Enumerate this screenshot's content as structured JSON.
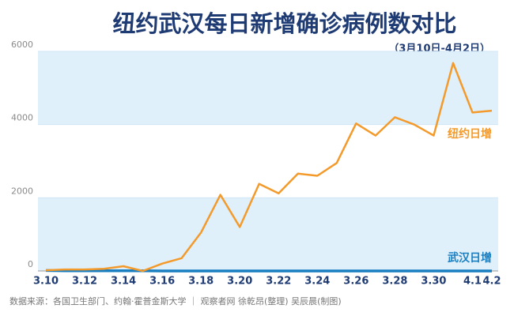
{
  "chart_data": {
    "type": "line",
    "title": "纽约武汉每日新增确诊病例数对比",
    "subtitle": "（3月10日-4月2日）",
    "source": "数据来源：各国卫生部门、约翰·霍普金斯大学 ｜ 观察者网 徐乾昂(整理) 吴辰晨(制图)",
    "categories": [
      "3.10",
      null,
      "3.12",
      null,
      "3.14",
      null,
      "3.16",
      null,
      "3.18",
      null,
      "3.20",
      null,
      "3.22",
      null,
      "3.24",
      null,
      "3.26",
      null,
      "3.28",
      null,
      "3.30",
      null,
      "4.1",
      "4.2"
    ],
    "series": [
      {
        "name": "纽约日增",
        "color": "#f39a2b",
        "values": [
          20,
          40,
          40,
          60,
          130,
          0,
          200,
          350,
          1050,
          2080,
          1200,
          2380,
          2120,
          2660,
          2600,
          2950,
          4030,
          3700,
          4200,
          4000,
          3700,
          5680,
          4330,
          4380
        ]
      },
      {
        "name": "武汉日增",
        "color": "#1a7fc1",
        "values": [
          13,
          6,
          5,
          4,
          4,
          4,
          1,
          1,
          0,
          0,
          0,
          0,
          0,
          0,
          0,
          0,
          0,
          0,
          0,
          0,
          0,
          0,
          0,
          0
        ]
      }
    ],
    "ylim": [
      0,
      6000
    ],
    "yticks": [
      0,
      2000,
      4000,
      6000
    ]
  }
}
